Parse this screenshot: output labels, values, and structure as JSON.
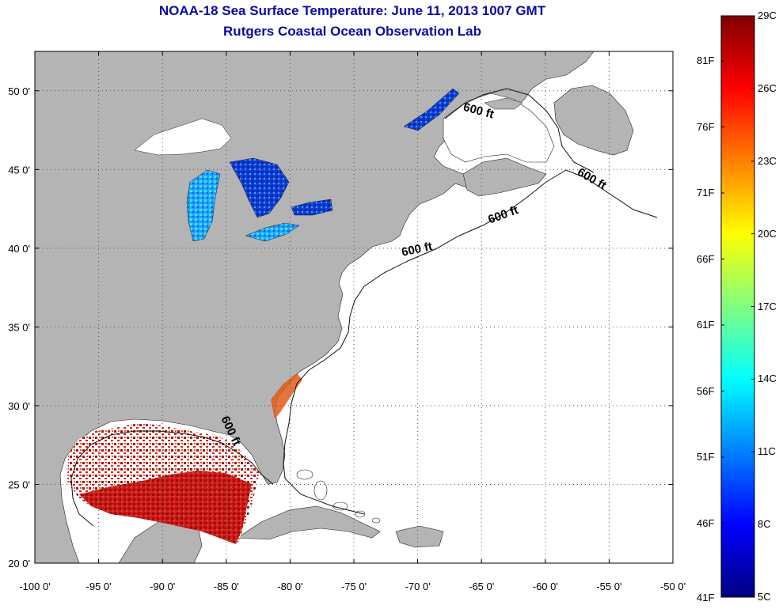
{
  "title": "NOAA-18 Sea Surface Temperature:  June 11, 2013 1007 GMT",
  "subtitle": "Rutgers Coastal Ocean Observation Lab",
  "map": {
    "lon_range": [
      -100,
      -50
    ],
    "lat_range": [
      20,
      52.5
    ],
    "x_ticks": [
      {
        "value": -100,
        "label": "-100 0'"
      },
      {
        "value": -95,
        "label": "-95 0'"
      },
      {
        "value": -90,
        "label": "-90 0'"
      },
      {
        "value": -85,
        "label": "-85 0'"
      },
      {
        "value": -80,
        "label": "-80 0'"
      },
      {
        "value": -75,
        "label": "-75 0'"
      },
      {
        "value": -70,
        "label": "-70 0'"
      },
      {
        "value": -65,
        "label": "-65 0'"
      },
      {
        "value": -60,
        "label": "-60 0'"
      },
      {
        "value": -55,
        "label": "-55 0'"
      },
      {
        "value": -50,
        "label": "-50 0'"
      }
    ],
    "y_ticks": [
      {
        "value": 50,
        "label": "50 0'"
      },
      {
        "value": 45,
        "label": "45 0'"
      },
      {
        "value": 40,
        "label": "40 0'"
      },
      {
        "value": 35,
        "label": "35 0'"
      },
      {
        "value": 30,
        "label": "30 0'"
      },
      {
        "value": 25,
        "label": "25 0'"
      },
      {
        "value": 20,
        "label": "20 0'"
      }
    ],
    "grid": true,
    "land_color": "#b4b4b4",
    "water_color": "#ffffff",
    "isobath_labels": [
      {
        "text": "600 ft",
        "lon": -65.3,
        "lat": 48.5,
        "rotate": 15
      },
      {
        "text": "600 ft",
        "lon": -56.5,
        "lat": 44.2,
        "rotate": 30
      },
      {
        "text": "600 ft",
        "lon": -63.2,
        "lat": 41.9,
        "rotate": -20
      },
      {
        "text": "600 ft",
        "lon": -70.0,
        "lat": 39.7,
        "rotate": -12
      },
      {
        "text": "600 ft",
        "lon": -84.9,
        "lat": 28.3,
        "rotate": 65
      }
    ]
  },
  "colorbar": {
    "celsius_labels": [
      "29C",
      "26C",
      "23C",
      "20C",
      "17C",
      "14C",
      "11C",
      "8C",
      "5C"
    ],
    "fahrenheit_labels": [
      "81F",
      "76F",
      "71F",
      "66F",
      "61F",
      "56F",
      "51F",
      "46F",
      "41F"
    ],
    "colors": [
      "#800000",
      "#ff0000",
      "#ff8000",
      "#ffff00",
      "#80ff80",
      "#00ffff",
      "#0080ff",
      "#0000ff",
      "#000080"
    ]
  }
}
